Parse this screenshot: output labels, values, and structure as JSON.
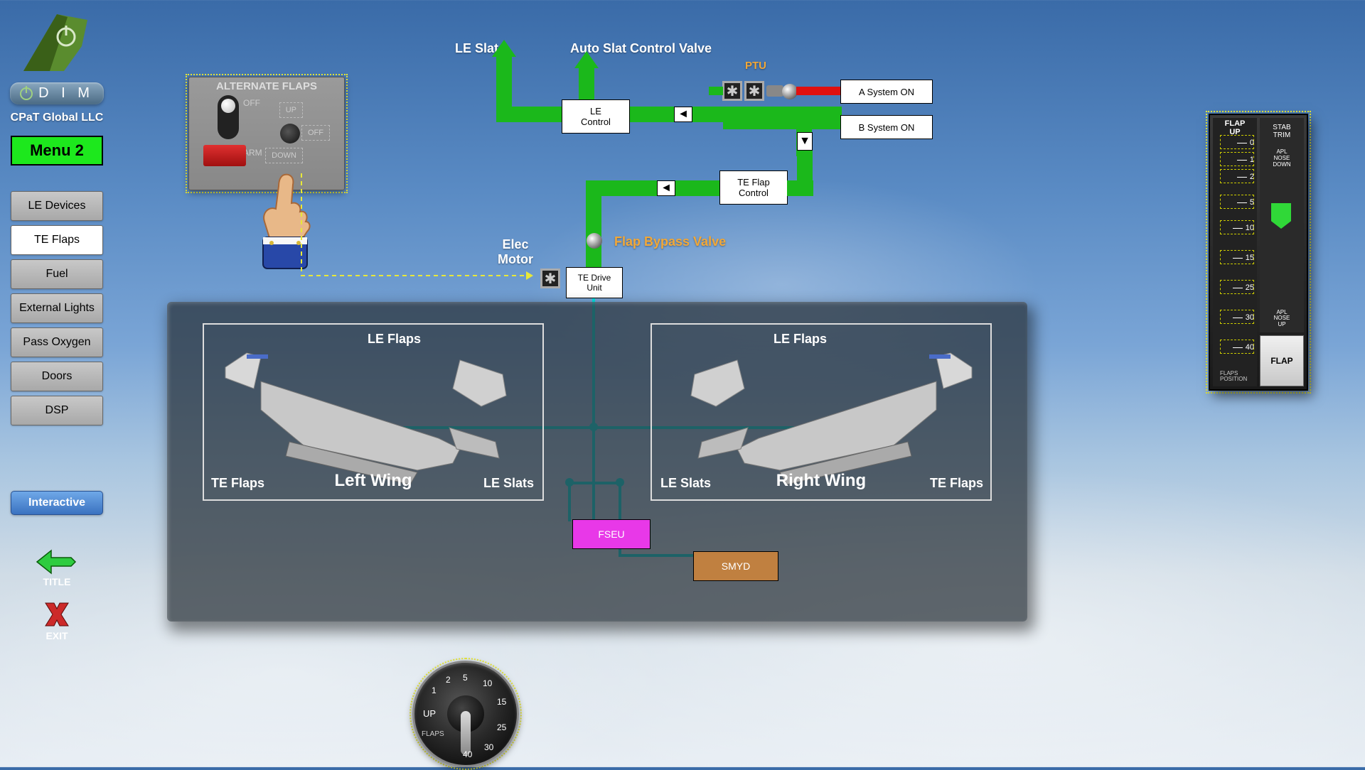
{
  "company": "CPaT Global LLC",
  "dim": "D I M",
  "menu2": "Menu 2",
  "nav": [
    {
      "label": "LE Devices",
      "active": false
    },
    {
      "label": "TE Flaps",
      "active": true
    },
    {
      "label": "Fuel",
      "active": false
    },
    {
      "label": "External Lights",
      "active": false
    },
    {
      "label": "Pass Oxygen",
      "active": false
    },
    {
      "label": "Doors",
      "active": false
    },
    {
      "label": "DSP",
      "active": false
    }
  ],
  "interactive": "Interactive",
  "title_btn": "TITLE",
  "exit_btn": "EXIT",
  "alt_panel": {
    "header": "ALTERNATE FLAPS",
    "off_lbl": "OFF",
    "arm_lbl": "ARM",
    "up": "UP",
    "off2": "OFF",
    "down": "DOWN"
  },
  "labels": {
    "le_slats": "LE Slats",
    "auto_slat": "Auto Slat Control Valve",
    "ptu": "PTU",
    "elec_motor": "Elec\nMotor",
    "flap_bypass": "Flap Bypass Valve"
  },
  "boxes": {
    "le_control": "LE\nControl",
    "a_sys": "A System ON",
    "b_sys": "B System ON",
    "te_flap": "TE Flap\nControl",
    "te_drive": "TE Drive\nUnit",
    "fseu": "FSEU",
    "smyd": "SMYD"
  },
  "wing": {
    "le_flaps": "LE Flaps",
    "le_slats": "LE Slats",
    "te_flaps": "TE Flaps",
    "left": "Left Wing",
    "right": "Right Wing"
  },
  "dial": {
    "up": "UP",
    "flaps": "FLAPS",
    "marks": [
      "1",
      "2",
      "5",
      "10",
      "15",
      "25",
      "30",
      "40"
    ]
  },
  "gauge": {
    "flap_up": "FLAP\nUP",
    "stab": "STAB\nTRIM",
    "apl_down": "APL\nNOSE\nDOWN",
    "apl_up": "APL\nNOSE\nUP",
    "flap_btn": "FLAP",
    "pos": "FLAPS\nPOSITION",
    "marks": [
      {
        "v": "0",
        "pct": 0
      },
      {
        "v": "1",
        "pct": 8
      },
      {
        "v": "2",
        "pct": 16
      },
      {
        "v": "5",
        "pct": 28
      },
      {
        "v": "10",
        "pct": 40
      },
      {
        "v": "15",
        "pct": 54
      },
      {
        "v": "25",
        "pct": 68
      },
      {
        "v": "30",
        "pct": 82
      },
      {
        "v": "40",
        "pct": 96
      }
    ]
  },
  "colors": {
    "green": "#1bb81b",
    "cyan": "#00e0e0",
    "red": "#e01010",
    "orange": "#f2a838",
    "magenta": "#e838e8",
    "tan": "#c08040"
  }
}
